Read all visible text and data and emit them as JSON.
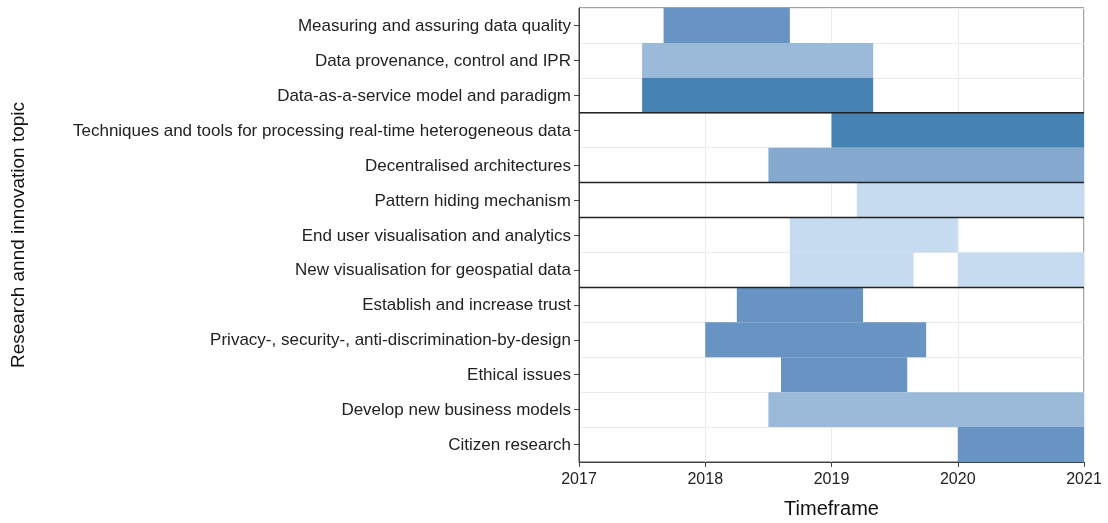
{
  "chart_data": {
    "type": "bar",
    "orientation": "horizontal",
    "xlabel": "Timeframe",
    "ylabel": "Research annd innovation topic",
    "categories": [
      "Measuring and assuring data quality",
      "Data provenance, control and IPR",
      "Data-as-a-service model and paradigm",
      "Techniques and tools for processing real-time heterogeneous data",
      "Decentralised architectures",
      "Pattern hiding mechanism",
      "End user visualisation and analytics",
      "New visualisation for geospatial data",
      "Establish and increase trust",
      "Privacy-, security-, anti-discrimination-by-design",
      "Ethical issues",
      "Develop new business models",
      "Citizen research"
    ],
    "series": [
      {
        "base": [
          2017.67,
          2017.5,
          2017.5,
          2019,
          2018.5,
          2019.2,
          2018.67,
          2018.67,
          2018.25,
          2018,
          2018.6,
          2018.5,
          2020
        ],
        "values": [
          1,
          1.83,
          1.83,
          2,
          2.5,
          1.8,
          1.33,
          0.98,
          1,
          1.75,
          1,
          2.5,
          1
        ],
        "colors": [
          "#6794c2",
          "#9bbad9",
          "#4682b4",
          "#4682b4",
          "#86aacf",
          "#c6dbef",
          "#c6dbef",
          "#c6dbef",
          "#6794c2",
          "#6794c2",
          "#6794c2",
          "#9bbad9",
          "#6794c2"
        ]
      },
      {
        "base": [
          null,
          null,
          null,
          null,
          null,
          null,
          null,
          2020,
          null,
          null,
          null,
          null,
          null
        ],
        "values": [
          null,
          null,
          null,
          null,
          null,
          null,
          null,
          1,
          null,
          null,
          null,
          null,
          null
        ],
        "colors": [
          null,
          null,
          null,
          null,
          null,
          null,
          null,
          "#c6dbef",
          null,
          null,
          null,
          null,
          null
        ]
      }
    ],
    "xlim": [
      2017,
      2021
    ],
    "xticks": [
      2017,
      2018,
      2019,
      2020,
      2021
    ],
    "grid": true
  }
}
